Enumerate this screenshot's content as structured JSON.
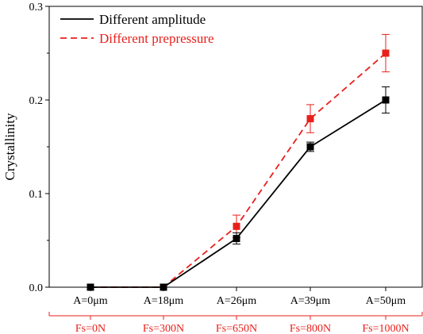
{
  "chart_data": {
    "type": "line",
    "title": "",
    "xlabel": "",
    "ylabel": "Crystallinity",
    "ylim": [
      0,
      0.3
    ],
    "yticks": [
      0.0,
      0.1,
      0.2,
      0.3
    ],
    "ytick_labels": [
      "0.0",
      "0.1",
      "0.2",
      "0.3"
    ],
    "categories": [
      "A=0μm",
      "A=18μm",
      "A=26μm",
      "A=39μm",
      "A=50μm"
    ],
    "secondary_categories": [
      "Fs=0N",
      "Fs=300N",
      "Fs=650N",
      "Fs=800N",
      "Fs=1000N"
    ],
    "grid": false,
    "legend_position": "top-left",
    "series": [
      {
        "name": "Different amplitude",
        "color": "#000000",
        "line_style": "solid",
        "marker": "square",
        "values": [
          0.0,
          0.0,
          0.052,
          0.15,
          0.2
        ],
        "errors": [
          0.0,
          0.0,
          0.006,
          0.005,
          0.014
        ]
      },
      {
        "name": "Different prepressure",
        "color": "#e8201c",
        "line_style": "dashed",
        "marker": "square",
        "values": [
          0.0,
          0.0,
          0.065,
          0.18,
          0.25
        ],
        "errors": [
          0.0,
          0.0,
          0.012,
          0.015,
          0.02
        ]
      }
    ],
    "axis_color": "#000000",
    "secondary_axis_color": "#e8201c"
  }
}
